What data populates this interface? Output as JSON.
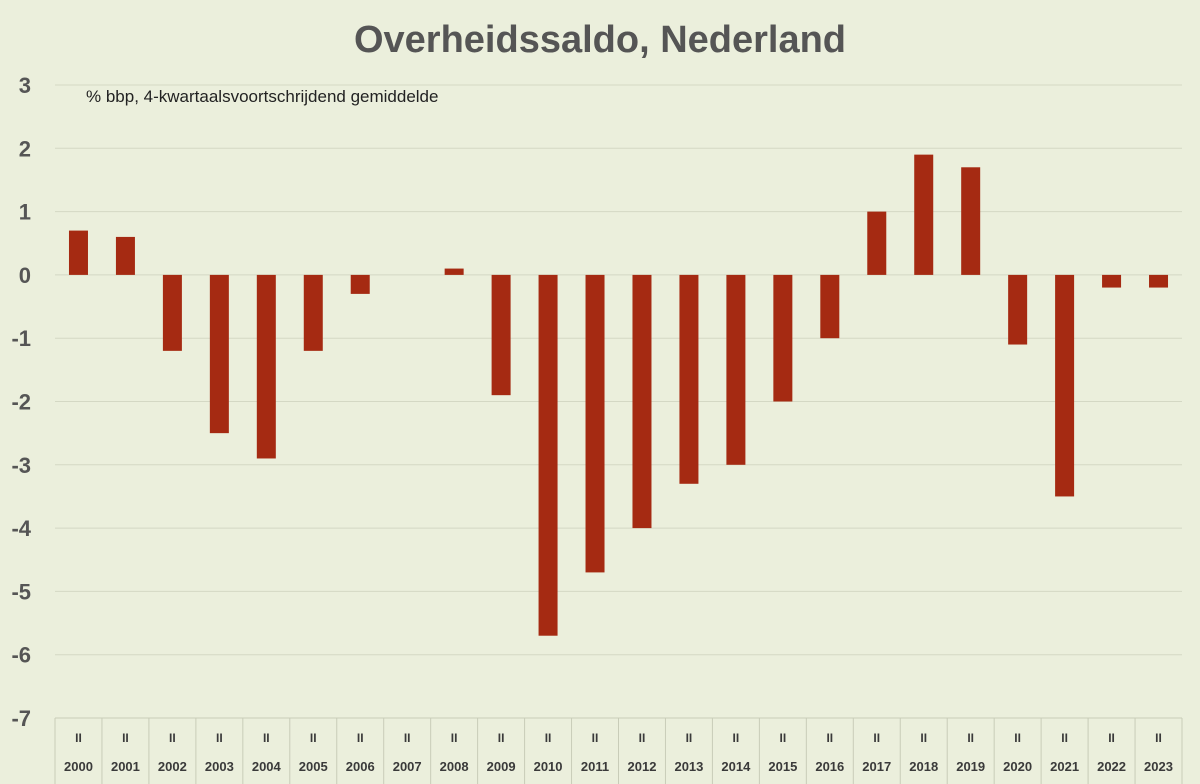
{
  "chart_data": {
    "type": "bar",
    "title": "Overheidssaldo, Nederland",
    "subtitle": "% bbp, 4-kwartaalsvoortschrijdend gemiddelde",
    "xlabel": "",
    "ylabel": "",
    "ylim": [
      -7,
      3
    ],
    "yticks": [
      3,
      2,
      1,
      0,
      -1,
      -2,
      -3,
      -4,
      -5,
      -6,
      -7
    ],
    "grid": true,
    "quarter_label": "II",
    "categories": [
      "2000",
      "2001",
      "2002",
      "2003",
      "2004",
      "2005",
      "2006",
      "2007",
      "2008",
      "2009",
      "2010",
      "2011",
      "2012",
      "2013",
      "2014",
      "2015",
      "2016",
      "2017",
      "2018",
      "2019",
      "2020",
      "2021",
      "2022",
      "2023"
    ],
    "values": [
      0.7,
      0.6,
      -1.2,
      -2.5,
      -2.9,
      -1.2,
      -0.3,
      0.0,
      0.1,
      -1.9,
      -5.7,
      -4.7,
      -4.0,
      -3.3,
      -3.0,
      -2.0,
      -1.0,
      1.0,
      1.9,
      1.7,
      -1.1,
      -3.5,
      -0.2,
      -0.2
    ],
    "bar_color": "#a52a12"
  }
}
